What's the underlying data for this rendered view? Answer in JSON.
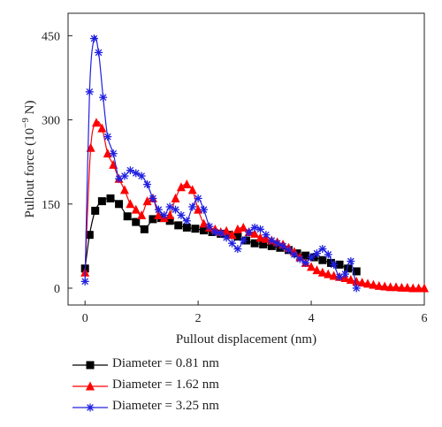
{
  "chart_data": {
    "type": "line",
    "title": "",
    "xlabel": "Pullout displacement (nm)",
    "ylabel_main": "Pullout force (10",
    "ylabel_exp": "−9",
    "ylabel_unit": " N)",
    "xlim": [
      -0.3,
      6
    ],
    "ylim": [
      -30,
      490
    ],
    "x_ticks": [
      0,
      2,
      4,
      6
    ],
    "x_tick_labels": [
      "0",
      "2",
      "4",
      "6"
    ],
    "y_ticks": [
      0,
      150,
      300,
      450
    ],
    "y_tick_labels": [
      "0",
      "150",
      "300",
      "450"
    ],
    "legend_position": "bottom-left, below plot",
    "series": [
      {
        "name": "Diameter = 0.81 nm",
        "color": "#000000",
        "marker": "square",
        "x": [
          0.0,
          0.08,
          0.18,
          0.3,
          0.45,
          0.6,
          0.75,
          0.9,
          1.05,
          1.2,
          1.35,
          1.5,
          1.65,
          1.8,
          1.95,
          2.1,
          2.25,
          2.4,
          2.55,
          2.7,
          2.85,
          3.0,
          3.15,
          3.3,
          3.45,
          3.6,
          3.75,
          3.9,
          4.05,
          4.2,
          4.35,
          4.5,
          4.65,
          4.8
        ],
        "y": [
          35,
          95,
          138,
          155,
          160,
          150,
          128,
          118,
          105,
          123,
          125,
          120,
          112,
          108,
          106,
          103,
          100,
          97,
          95,
          92,
          85,
          80,
          78,
          75,
          72,
          68,
          62,
          58,
          55,
          50,
          45,
          42,
          35,
          30
        ]
      },
      {
        "name": "Diameter = 1.62 nm",
        "color": "#ff0000",
        "marker": "triangle",
        "x": [
          0.0,
          0.1,
          0.2,
          0.3,
          0.4,
          0.5,
          0.6,
          0.7,
          0.8,
          0.9,
          1.0,
          1.1,
          1.2,
          1.3,
          1.4,
          1.5,
          1.6,
          1.7,
          1.8,
          1.9,
          2.0,
          2.1,
          2.2,
          2.3,
          2.4,
          2.5,
          2.6,
          2.7,
          2.8,
          2.9,
          3.0,
          3.1,
          3.2,
          3.3,
          3.4,
          3.5,
          3.6,
          3.7,
          3.8,
          3.9,
          4.0,
          4.1,
          4.2,
          4.3,
          4.4,
          4.5,
          4.6,
          4.7,
          4.8,
          4.9,
          5.0,
          5.1,
          5.2,
          5.3,
          5.4,
          5.5,
          5.6,
          5.7,
          5.8,
          5.9,
          6.0
        ],
        "y": [
          28,
          250,
          295,
          285,
          240,
          220,
          195,
          175,
          150,
          140,
          130,
          155,
          160,
          130,
          125,
          130,
          160,
          180,
          185,
          175,
          140,
          115,
          108,
          105,
          100,
          102,
          95,
          105,
          108,
          100,
          97,
          90,
          88,
          85,
          82,
          78,
          72,
          65,
          55,
          45,
          38,
          32,
          28,
          25,
          22,
          20,
          18,
          15,
          12,
          10,
          8,
          6,
          4,
          3,
          2,
          2,
          1,
          1,
          0,
          0,
          0
        ]
      },
      {
        "name": "Diameter = 3.25 nm",
        "color": "#2020e0",
        "marker": "star",
        "x": [
          0.0,
          0.08,
          0.16,
          0.24,
          0.32,
          0.4,
          0.5,
          0.6,
          0.7,
          0.8,
          0.9,
          1.0,
          1.1,
          1.2,
          1.3,
          1.4,
          1.5,
          1.6,
          1.7,
          1.8,
          1.9,
          2.0,
          2.1,
          2.2,
          2.3,
          2.4,
          2.5,
          2.6,
          2.7,
          2.8,
          2.9,
          3.0,
          3.1,
          3.2,
          3.3,
          3.4,
          3.5,
          3.6,
          3.7,
          3.8,
          3.9,
          4.0,
          4.1,
          4.2,
          4.3,
          4.4,
          4.5,
          4.6,
          4.7,
          4.8
        ],
        "y": [
          12,
          350,
          445,
          420,
          340,
          270,
          240,
          195,
          200,
          210,
          205,
          200,
          185,
          160,
          140,
          130,
          145,
          140,
          130,
          120,
          145,
          160,
          140,
          110,
          100,
          98,
          90,
          80,
          70,
          85,
          100,
          108,
          105,
          95,
          85,
          80,
          75,
          68,
          60,
          52,
          45,
          55,
          62,
          70,
          60,
          42,
          20,
          25,
          48,
          0
        ]
      }
    ]
  }
}
